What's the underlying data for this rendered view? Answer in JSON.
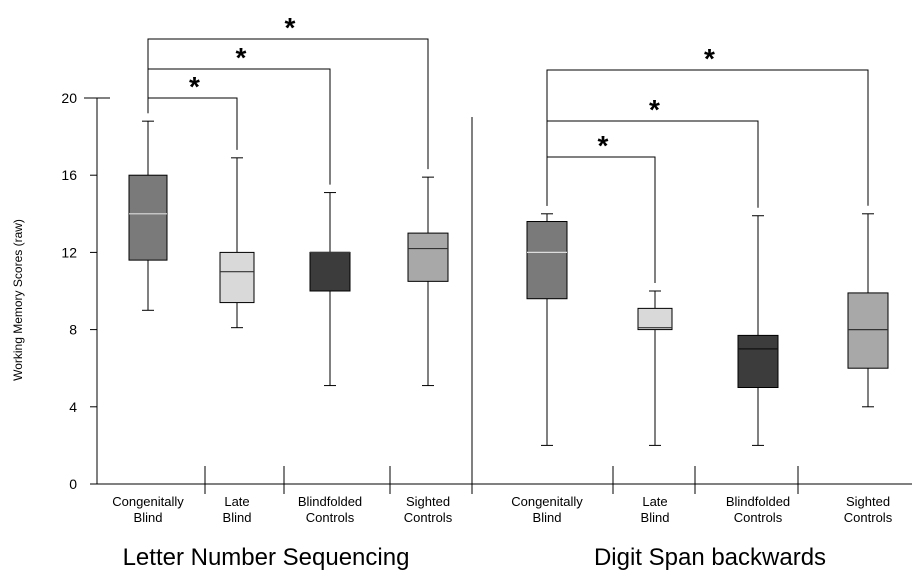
{
  "chart_data": {
    "type": "box",
    "ylabel": "Working Memory Scores (raw)",
    "ylim": [
      0,
      20
    ],
    "yticks": [
      0,
      4,
      8,
      12,
      16,
      20
    ],
    "groups": [
      {
        "name": "Letter Number Sequencing",
        "categories": [
          {
            "label": [
              "Congenitally",
              "Blind"
            ],
            "min": 9,
            "q1": 11.6,
            "median": 14,
            "q3": 16,
            "max": 18.8,
            "color": "#7a7a7a",
            "median_color": "#dddddd"
          },
          {
            "label": [
              "Late",
              "Blind"
            ],
            "min": 8.1,
            "q1": 9.4,
            "median": 11,
            "q3": 12,
            "max": 16.9,
            "color": "#d9d9d9",
            "median_color": "#333333"
          },
          {
            "label": [
              "Blindfolded",
              "Controls"
            ],
            "min": 5.1,
            "q1": 10,
            "median": 12,
            "q3": 12,
            "max": 15.1,
            "color": "#3c3c3c",
            "median_color": "#3c3c3c"
          },
          {
            "label": [
              "Sighted",
              "Controls"
            ],
            "min": 5.1,
            "q1": 10.5,
            "median": 12.2,
            "q3": 13,
            "max": 15.9,
            "color": "#a8a8a8",
            "median_color": "#333333"
          }
        ],
        "significance": [
          {
            "from": 0,
            "to": 1,
            "label": "*"
          },
          {
            "from": 0,
            "to": 2,
            "label": "*"
          },
          {
            "from": 0,
            "to": 3,
            "label": "*"
          }
        ]
      },
      {
        "name": "Digit Span backwards",
        "categories": [
          {
            "label": [
              "Congenitally",
              "Blind"
            ],
            "min": 2,
            "q1": 9.6,
            "median": 12,
            "q3": 13.6,
            "max": 14,
            "color": "#7a7a7a",
            "median_color": "#dddddd"
          },
          {
            "label": [
              "Late",
              "Blind"
            ],
            "min": 2,
            "q1": 8,
            "median": 8.1,
            "q3": 9.1,
            "max": 10,
            "color": "#d9d9d9",
            "median_color": "#333333"
          },
          {
            "label": [
              "Blindfolded",
              "Controls"
            ],
            "min": 2,
            "q1": 5,
            "median": 7,
            "q3": 7.7,
            "max": 13.9,
            "color": "#3c3c3c",
            "median_color": "#111111"
          },
          {
            "label": [
              "Sighted",
              "Controls"
            ],
            "min": 4,
            "q1": 6,
            "median": 8,
            "q3": 9.9,
            "max": 14,
            "color": "#a8a8a8",
            "median_color": "#333333"
          }
        ],
        "significance": [
          {
            "from": 0,
            "to": 1,
            "label": "*"
          },
          {
            "from": 0,
            "to": 2,
            "label": "*"
          },
          {
            "from": 0,
            "to": 3,
            "label": "*"
          }
        ]
      }
    ]
  }
}
